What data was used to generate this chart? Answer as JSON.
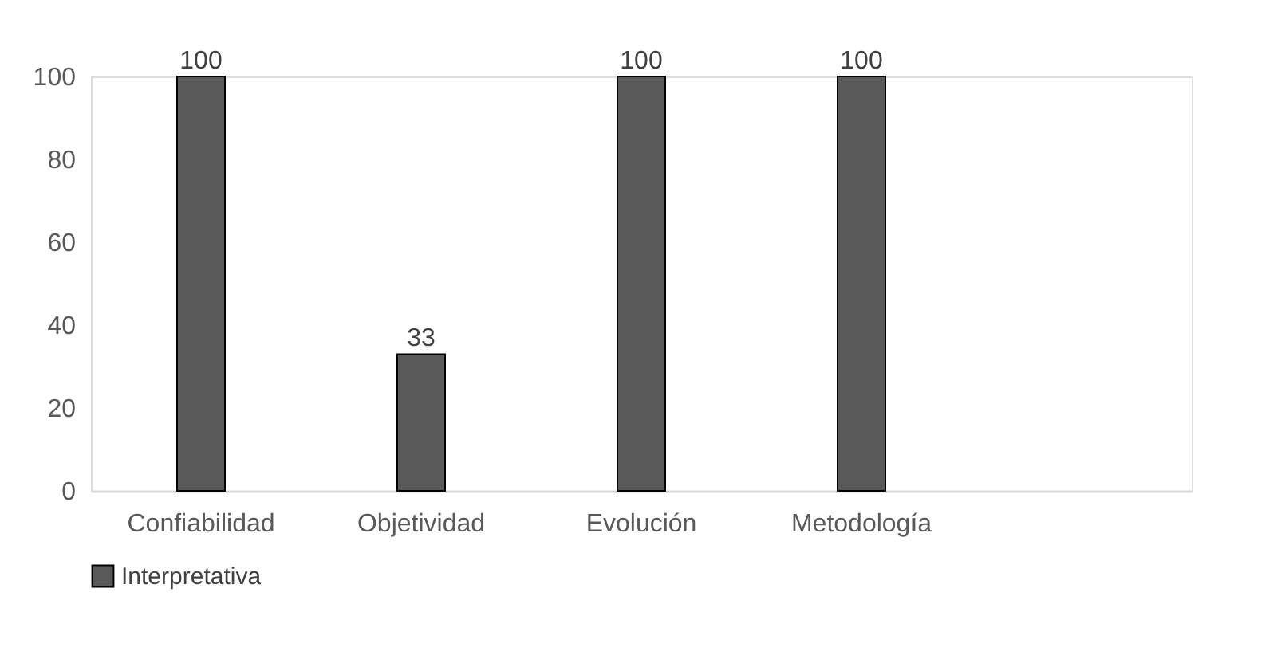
{
  "chart_data": {
    "type": "bar",
    "categories": [
      "Confiabilidad",
      "Objetividad",
      "Evolución",
      "Metodología",
      null
    ],
    "series": [
      {
        "name": "Interpretativa",
        "color": "#595959",
        "values": [
          100,
          33,
          100,
          100,
          null
        ]
      }
    ],
    "ylim": [
      0,
      100
    ],
    "yticks": [
      0,
      20,
      40,
      60,
      80,
      100
    ],
    "grid": false,
    "legend": "bottom",
    "data_labels": true
  }
}
